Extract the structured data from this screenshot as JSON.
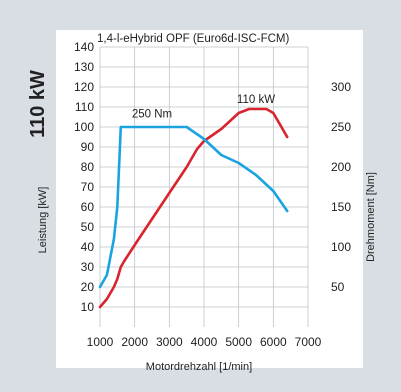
{
  "chart_data": {
    "type": "line",
    "title": "110 kW",
    "subtitle": "1,4-l-eHybrid OPF (Euro6d-ISC-FCM)",
    "xlabel": "Motordrehzahl [1/min]",
    "ylabel_left": "Leistung [kW]",
    "ylabel_right": "Drehmoment [Nm]",
    "x_ticks": [
      1000,
      2000,
      3000,
      4000,
      5000,
      6000,
      7000
    ],
    "y_left_ticks": [
      10,
      20,
      30,
      40,
      50,
      60,
      70,
      80,
      90,
      100,
      110,
      120,
      130,
      140
    ],
    "y_right_ticks": [
      50,
      100,
      150,
      200,
      250,
      300
    ],
    "xlim": [
      1000,
      7000
    ],
    "ylim_left": [
      0,
      140
    ],
    "ylim_right": [
      0,
      350
    ],
    "grid": true,
    "series": [
      {
        "axis": "left",
        "color": "#d9232e",
        "points": [
          [
            1000,
            10
          ],
          [
            1200,
            14
          ],
          [
            1400,
            20
          ],
          [
            1500,
            24
          ],
          [
            1600,
            30
          ],
          [
            1700,
            33
          ],
          [
            2000,
            41
          ],
          [
            2500,
            54
          ],
          [
            3000,
            67
          ],
          [
            3500,
            80
          ],
          [
            3800,
            89
          ],
          [
            4000,
            93
          ],
          [
            4500,
            99
          ],
          [
            5000,
            107
          ],
          [
            5300,
            109
          ],
          [
            5800,
            109
          ],
          [
            6000,
            107
          ],
          [
            6200,
            101
          ],
          [
            6400,
            95
          ]
        ]
      },
      {
        "axis": "right",
        "color": "#1ba3e0",
        "points": [
          [
            1000,
            50
          ],
          [
            1200,
            65
          ],
          [
            1400,
            110
          ],
          [
            1500,
            150
          ],
          [
            1600,
            250
          ],
          [
            3500,
            250
          ],
          [
            4000,
            235
          ],
          [
            4500,
            215
          ],
          [
            5000,
            205
          ],
          [
            5500,
            190
          ],
          [
            6000,
            170
          ],
          [
            6400,
            145
          ]
        ]
      }
    ],
    "annotations": [
      {
        "text": "110 kW",
        "x": 5500,
        "y": 112,
        "axis": "left"
      },
      {
        "text": "250 Nm",
        "x": 2500,
        "y": 262,
        "axis": "right"
      }
    ]
  }
}
